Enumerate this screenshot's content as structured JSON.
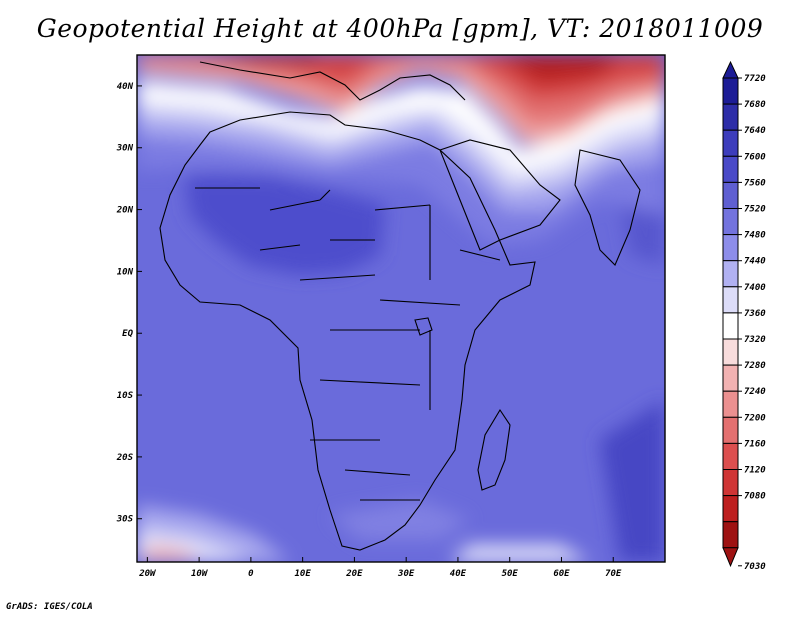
{
  "title": "Geopotential Height at 400hPa [gpm], VT: 2018011009",
  "credit": "GrADS: IGES/COLA",
  "map": {
    "lon_range": [
      -22,
      80
    ],
    "lat_range": [
      -37,
      45
    ],
    "lon_ticks": [
      {
        "value": -20,
        "label": "20W"
      },
      {
        "value": -10,
        "label": "10W"
      },
      {
        "value": 0,
        "label": "0"
      },
      {
        "value": 10,
        "label": "10E"
      },
      {
        "value": 20,
        "label": "20E"
      },
      {
        "value": 30,
        "label": "30E"
      },
      {
        "value": 40,
        "label": "40E"
      },
      {
        "value": 50,
        "label": "50E"
      },
      {
        "value": 60,
        "label": "60E"
      },
      {
        "value": 70,
        "label": "70E"
      }
    ],
    "lat_ticks": [
      {
        "value": 40,
        "label": "40N"
      },
      {
        "value": 30,
        "label": "30N"
      },
      {
        "value": 20,
        "label": "20N"
      },
      {
        "value": 10,
        "label": "10N"
      },
      {
        "value": 0,
        "label": "EQ"
      },
      {
        "value": -10,
        "label": "10S"
      },
      {
        "value": -20,
        "label": "20S"
      },
      {
        "value": -30,
        "label": "30S"
      }
    ],
    "background_color": "#6a6bdb"
  },
  "colorbar": {
    "levels": [
      "7720",
      "7680",
      "7640",
      "7600",
      "7560",
      "7520",
      "7480",
      "7440",
      "7400",
      "7360",
      "7320",
      "7280",
      "7240",
      "7200",
      "7160",
      "7120",
      "7080",
      "7030"
    ],
    "colors": [
      "#1c1c96",
      "#2d2da8",
      "#3d3dbc",
      "#4a4ac8",
      "#5f5fd2",
      "#7373de",
      "#8d8dea",
      "#b1b1f2",
      "#dcdcf8",
      "#ffffff",
      "#f8dcdc",
      "#f2b2b2",
      "#eb9090",
      "#e47070",
      "#dc4f4f",
      "#cf3535",
      "#bd1f1f",
      "#9e1212"
    ]
  }
}
